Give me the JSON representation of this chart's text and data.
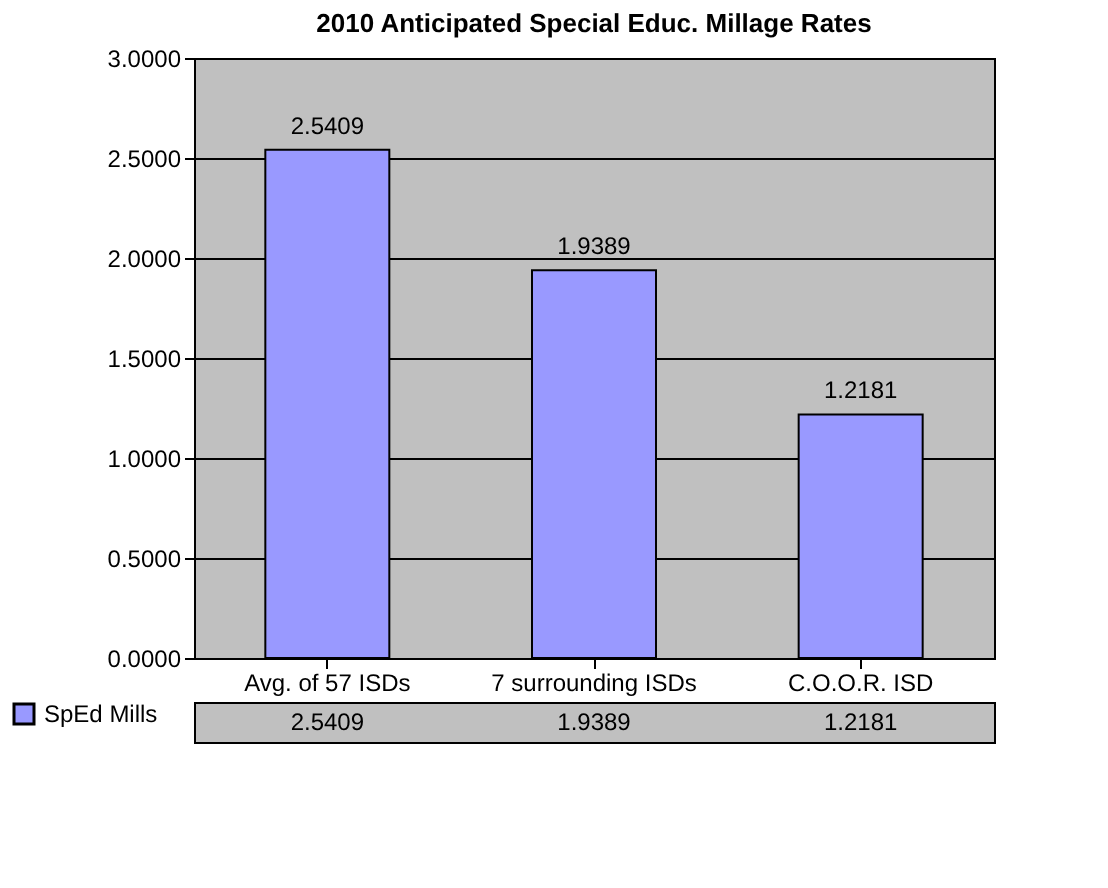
{
  "chart_data": {
    "type": "bar",
    "title": "2010 Anticipated Special Educ. Millage Rates",
    "categories": [
      "Avg. of 57 ISDs",
      "7 surrounding ISDs",
      "C.O.O.R. ISD"
    ],
    "series": [
      {
        "name": "SpEd Mills",
        "color": "#9999ff",
        "values": [
          2.5409,
          1.9389,
          1.2181
        ]
      }
    ],
    "annotations": [
      "2.5409",
      "1.9389",
      "1.2181"
    ],
    "ylim": [
      0,
      3
    ],
    "yticks": [
      {
        "value": 0,
        "label": "0.0000"
      },
      {
        "value": 0.5,
        "label": "0.5000"
      },
      {
        "value": 1,
        "label": "1.0000"
      },
      {
        "value": 1.5,
        "label": "1.5000"
      },
      {
        "value": 2,
        "label": "2.0000"
      },
      {
        "value": 2.5,
        "label": "2.5000"
      },
      {
        "value": 3,
        "label": "3.0000"
      }
    ],
    "grid": "y",
    "data_labels": true,
    "legend": "bottom left"
  }
}
